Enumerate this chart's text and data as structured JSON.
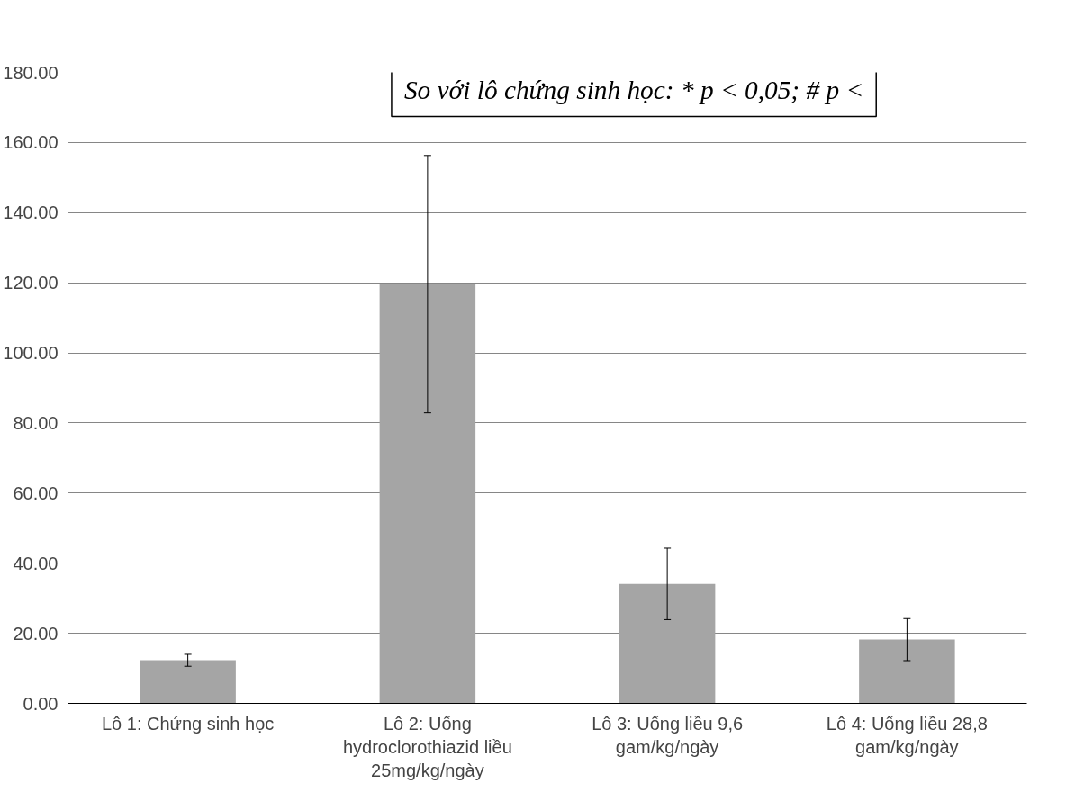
{
  "chart_data": {
    "type": "bar",
    "categories": [
      "Lô 1: Chứng sinh học",
      "Lô 2: Uống hydroclorothiazid liều 25mg/kg/ngày",
      "Lô 3: Uống liều 9,6 gam/kg/ngày",
      "Lô 4: Uống liều 28,8 gam/kg/ngày"
    ],
    "values": [
      12.3,
      119.6,
      34.1,
      18.2
    ],
    "errors": [
      1.7,
      36.7,
      10.2,
      6.0
    ],
    "color": "#a5a5a5",
    "ylim": [
      0,
      180
    ],
    "yticks": [
      {
        "value": 0,
        "label": "0.00"
      },
      {
        "value": 20,
        "label": "20.00"
      },
      {
        "value": 40,
        "label": "40.00"
      },
      {
        "value": 60,
        "label": "60.00"
      },
      {
        "value": 80,
        "label": "80.00"
      },
      {
        "value": 100,
        "label": "100.00"
      },
      {
        "value": 120,
        "label": "120.00"
      },
      {
        "value": 140,
        "label": "140.00"
      },
      {
        "value": 160,
        "label": "160.00"
      },
      {
        "value": 180,
        "label": "180.00"
      }
    ],
    "grid": "y",
    "annotations": [
      "So với lô chứng sinh học: * p < 0,05; # p <"
    ]
  }
}
